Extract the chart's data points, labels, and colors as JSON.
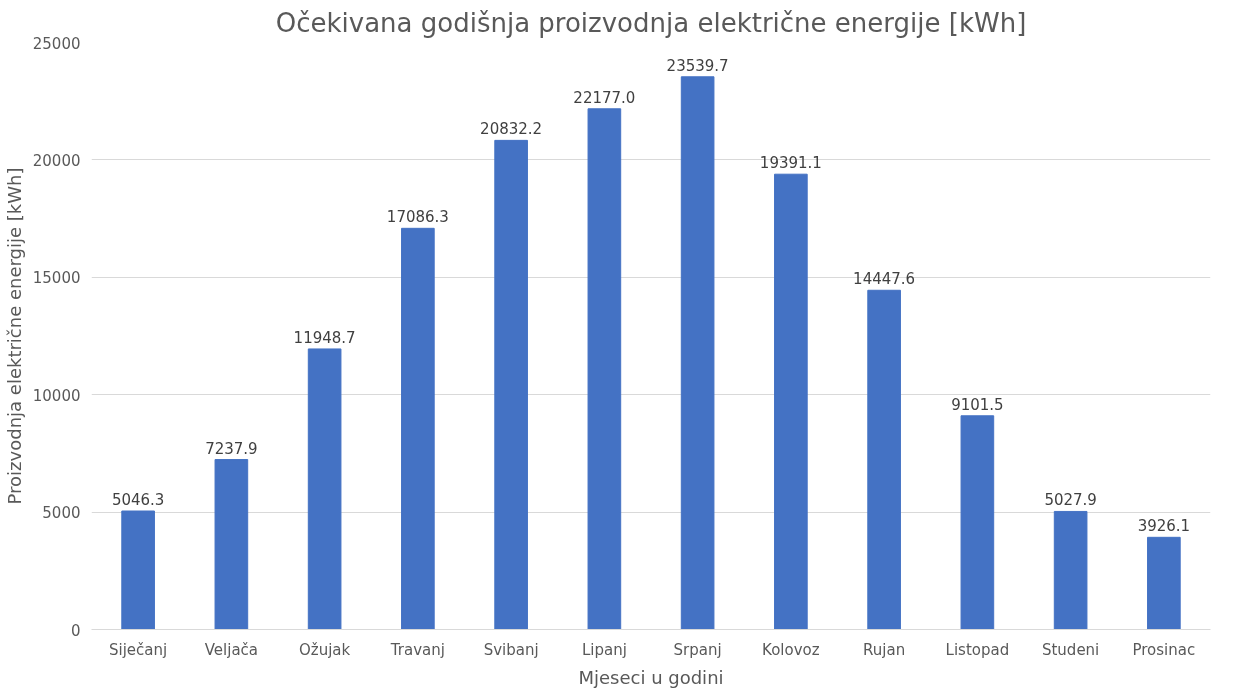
{
  "chart_data": {
    "type": "bar",
    "title": "Očekivana godišnja proizvodnja električne energije [kWh]",
    "xlabel": "Mjeseci u godini",
    "ylabel": "Proizvodnja električne energije [kWh]",
    "categories": [
      "Siječanj",
      "Veljača",
      "Ožujak",
      "Travanj",
      "Svibanj",
      "Lipanj",
      "Srpanj",
      "Kolovoz",
      "Rujan",
      "Listopad",
      "Studeni",
      "Prosinac"
    ],
    "values": [
      5046.3,
      7237.9,
      11948.7,
      17086.3,
      20832.2,
      22177.0,
      23539.7,
      19391.1,
      14447.6,
      9101.5,
      5027.9,
      3926.1
    ],
    "value_labels": [
      "5046.3",
      "7237.9",
      "11948.7",
      "17086.3",
      "20832.2",
      "22177.0",
      "23539.7",
      "19391.1",
      "14447.6",
      "9101.5",
      "5027.9",
      "3926.1"
    ],
    "color": "#4472c4",
    "ylim": [
      0,
      25000
    ],
    "yticks": [
      0,
      5000,
      10000,
      15000,
      20000,
      25000
    ],
    "grid": "y"
  }
}
